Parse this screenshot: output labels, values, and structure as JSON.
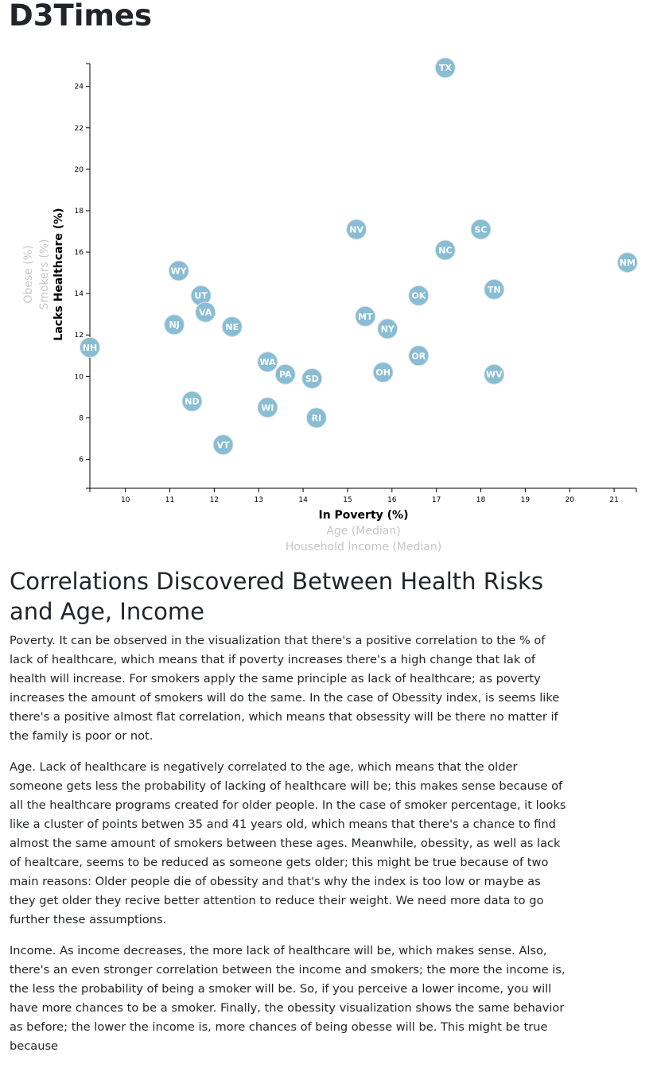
{
  "site": {
    "title": "D3Times"
  },
  "chart_data": {
    "type": "scatter",
    "x_axis": {
      "range": [
        9.2,
        21.5
      ],
      "ticks": [
        10,
        11,
        12,
        13,
        14,
        15,
        16,
        17,
        18,
        19,
        20,
        21
      ],
      "labels": [
        {
          "text": "In Poverty (%)",
          "active": true
        },
        {
          "text": "Age (Median)",
          "active": false
        },
        {
          "text": "Household Income (Median)",
          "active": false
        }
      ]
    },
    "y_axis": {
      "range": [
        4.6,
        25.1
      ],
      "ticks": [
        6,
        8,
        10,
        12,
        14,
        16,
        18,
        20,
        22,
        24
      ],
      "labels": [
        {
          "text": "Lacks Healthcare (%)",
          "active": true
        },
        {
          "text": "Smokers (%)",
          "active": false
        },
        {
          "text": "Obese (%)",
          "active": false
        }
      ]
    },
    "points": [
      {
        "abbr": "TX",
        "x": 17.2,
        "y": 24.9
      },
      {
        "abbr": "NV",
        "x": 15.2,
        "y": 17.1
      },
      {
        "abbr": "SC",
        "x": 18.0,
        "y": 17.1
      },
      {
        "abbr": "NC",
        "x": 17.2,
        "y": 16.1
      },
      {
        "abbr": "NM",
        "x": 21.3,
        "y": 15.5
      },
      {
        "abbr": "WY",
        "x": 11.2,
        "y": 15.1
      },
      {
        "abbr": "TN",
        "x": 18.3,
        "y": 14.2
      },
      {
        "abbr": "UT",
        "x": 11.7,
        "y": 13.9
      },
      {
        "abbr": "OK",
        "x": 16.6,
        "y": 13.9
      },
      {
        "abbr": "VA",
        "x": 11.8,
        "y": 13.1
      },
      {
        "abbr": "MT",
        "x": 15.4,
        "y": 12.9
      },
      {
        "abbr": "NJ",
        "x": 11.1,
        "y": 12.5
      },
      {
        "abbr": "NE",
        "x": 12.4,
        "y": 12.4
      },
      {
        "abbr": "NY",
        "x": 15.9,
        "y": 12.3
      },
      {
        "abbr": "NH",
        "x": 9.2,
        "y": 11.4
      },
      {
        "abbr": "OR",
        "x": 16.6,
        "y": 11.0
      },
      {
        "abbr": "WA",
        "x": 13.2,
        "y": 10.7
      },
      {
        "abbr": "OH",
        "x": 15.8,
        "y": 10.2
      },
      {
        "abbr": "PA",
        "x": 13.6,
        "y": 10.1
      },
      {
        "abbr": "WV",
        "x": 18.3,
        "y": 10.1
      },
      {
        "abbr": "SD",
        "x": 14.2,
        "y": 9.9
      },
      {
        "abbr": "ND",
        "x": 11.5,
        "y": 8.8
      },
      {
        "abbr": "WI",
        "x": 13.2,
        "y": 8.5
      },
      {
        "abbr": "RI",
        "x": 14.3,
        "y": 8.0
      },
      {
        "abbr": "VT",
        "x": 12.2,
        "y": 6.7
      }
    ]
  },
  "analysis": {
    "heading": "Correlations Discovered Between Health Risks and Age, Income",
    "paragraphs": [
      "Poverty. It can be observed in the visualization that there's a positive correlation to the % of lack of healthcare, which means that if poverty increases there's a high change that lak of health will increase. For smokers apply the same principle as lack of healthcare; as poverty increases the amount of smokers will do the same. In the case of Obessity index, is seems like there's a positive almost flat correlation, which means that obsessity will be there no matter if the family is poor or not.",
      "Age. Lack of healthcare is negatively correlated to the age, which means that the older someone gets less the probability of lacking of healthcare will be; this makes sense because of all the healthcare programs created for older people. In the case of smoker percentage, it looks like a cluster of points betwen 35 and 41 years old, which means that there's a chance to find almost the same amount of smokers between these ages. Meanwhile, obessity, as well as lack of healtcare, seems to be reduced as someone gets older; this might be true because of two main reasons: Older people die of obessity and that's why the index is too low or maybe as they get older they recive better attention to reduce their weight. We need more data to go further these assumptions.",
      "Income. As income decreases, the more lack of healthcare will be, which makes sense. Also, there's an even stronger correlation between the income and smokers; the more the income is, the less the probability of being a smoker will be. So, if you perceive a lower income, you will have more chances to be a smoker. Finally, the obessity visualization shows the same behavior as before; the lower the income is, more chances of being obesse will be. This might be true because"
    ]
  }
}
